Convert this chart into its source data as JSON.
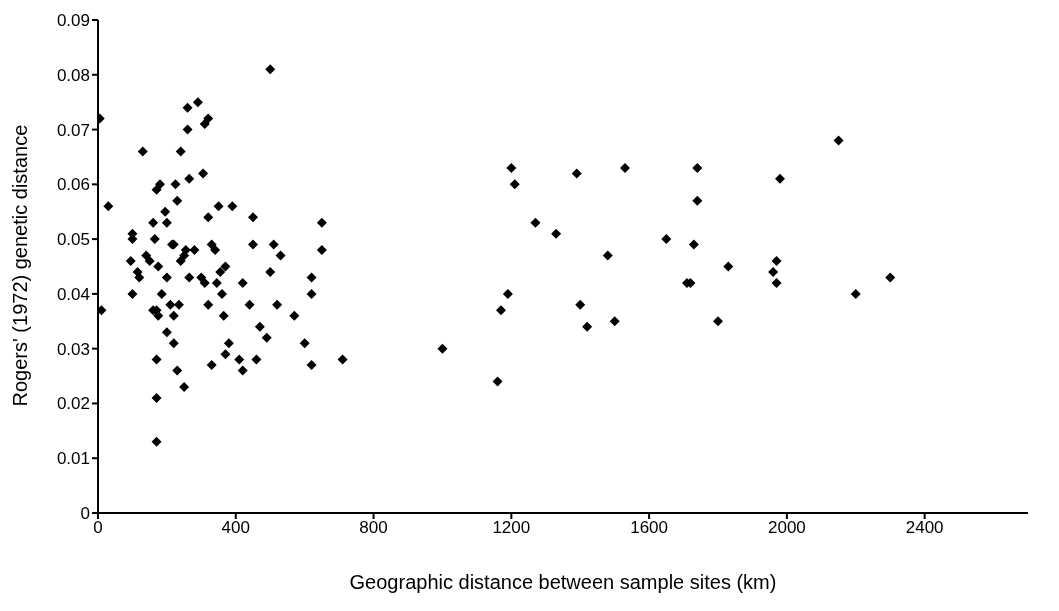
{
  "chart_data": {
    "type": "scatter",
    "xlabel": "Geographic distance between sample sites (km)",
    "ylabel": "Rogers' (1972) genetic distance",
    "xlim": [
      0,
      2700
    ],
    "xticks": [
      0,
      400,
      800,
      1200,
      1600,
      2000,
      2400
    ],
    "ylim": [
      0,
      0.09
    ],
    "yticks": [
      0,
      0.01,
      0.02,
      0.03,
      0.04,
      0.05,
      0.06,
      0.07,
      0.08,
      0.09
    ],
    "grid": false,
    "legend": false,
    "marker": "diamond",
    "series": [
      {
        "color": "#000000",
        "x": [
          5,
          30,
          10,
          100,
          100,
          95,
          100,
          115,
          120,
          130,
          140,
          150,
          160,
          165,
          160,
          170,
          175,
          170,
          175,
          180,
          170,
          170,
          170,
          185,
          195,
          200,
          200,
          200,
          210,
          215,
          220,
          220,
          225,
          230,
          220,
          230,
          235,
          240,
          240,
          250,
          255,
          260,
          260,
          265,
          265,
          250,
          280,
          290,
          300,
          305,
          310,
          310,
          320,
          320,
          320,
          330,
          330,
          340,
          345,
          350,
          355,
          360,
          365,
          370,
          370,
          380,
          390,
          410,
          420,
          420,
          440,
          450,
          450,
          460,
          470,
          490,
          500,
          500,
          510,
          520,
          530,
          570,
          600,
          620,
          620,
          620,
          650,
          650,
          710,
          1000,
          1160,
          1170,
          1190,
          1200,
          1210,
          1270,
          1330,
          1390,
          1400,
          1420,
          1480,
          1500,
          1530,
          1650,
          1710,
          1720,
          1730,
          1740,
          1740,
          1800,
          1830,
          1960,
          1970,
          1970,
          1980,
          2150,
          2200,
          2300
        ],
        "values": [
          0.072,
          0.056,
          0.037,
          0.051,
          0.05,
          0.046,
          0.04,
          0.044,
          0.043,
          0.066,
          0.047,
          0.046,
          0.053,
          0.05,
          0.037,
          0.059,
          0.045,
          0.037,
          0.036,
          0.06,
          0.028,
          0.021,
          0.013,
          0.04,
          0.055,
          0.053,
          0.043,
          0.033,
          0.038,
          0.049,
          0.049,
          0.036,
          0.06,
          0.057,
          0.031,
          0.026,
          0.038,
          0.066,
          0.046,
          0.047,
          0.048,
          0.07,
          0.074,
          0.061,
          0.043,
          0.023,
          0.048,
          0.075,
          0.043,
          0.062,
          0.071,
          0.042,
          0.072,
          0.054,
          0.038,
          0.049,
          0.027,
          0.048,
          0.042,
          0.056,
          0.044,
          0.04,
          0.036,
          0.029,
          0.045,
          0.031,
          0.056,
          0.028,
          0.042,
          0.026,
          0.038,
          0.054,
          0.049,
          0.028,
          0.034,
          0.032,
          0.081,
          0.044,
          0.049,
          0.038,
          0.047,
          0.036,
          0.031,
          0.027,
          0.04,
          0.043,
          0.048,
          0.053,
          0.028,
          0.03,
          0.024,
          0.037,
          0.04,
          0.063,
          0.06,
          0.053,
          0.051,
          0.062,
          0.038,
          0.034,
          0.047,
          0.035,
          0.063,
          0.05,
          0.042,
          0.042,
          0.049,
          0.063,
          0.057,
          0.035,
          0.045,
          0.044,
          0.042,
          0.046,
          0.061,
          0.068,
          0.04,
          0.043
        ]
      }
    ]
  }
}
